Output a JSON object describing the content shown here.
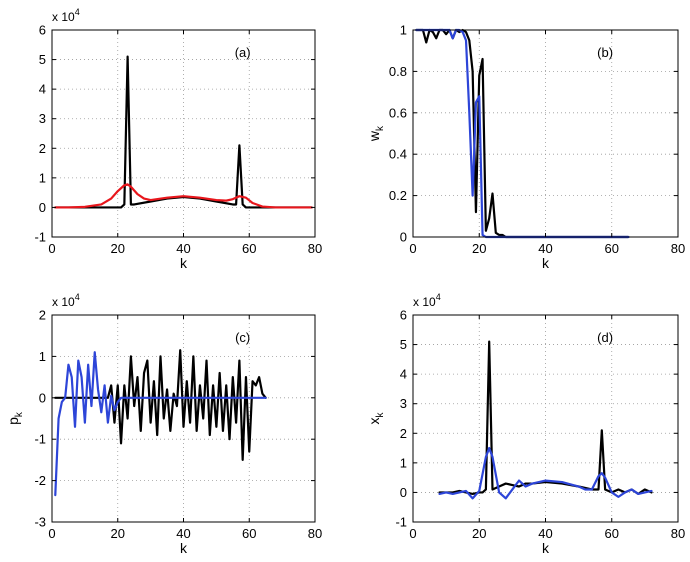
{
  "colors": {
    "black": "#000000",
    "red": "#e8161c",
    "blue": "#2d45d8",
    "grid": "#9a9a9a"
  },
  "chart_data": [
    {
      "id": "a",
      "type": "line",
      "label": "(a)",
      "xlabel": "k",
      "ylabel": "",
      "xlim": [
        0,
        80
      ],
      "ylim": [
        -1,
        6
      ],
      "xticks": [
        0,
        20,
        40,
        60,
        80
      ],
      "yticks": [
        -1,
        0,
        1,
        2,
        3,
        4,
        5,
        6
      ],
      "multiplier": "x 10",
      "multiplier_exp": "4",
      "grid": true,
      "series": [
        {
          "name": "black",
          "color": "#000000",
          "x": [
            1,
            21,
            22,
            23,
            24,
            25,
            30,
            35,
            40,
            45,
            50,
            55,
            56,
            57,
            58,
            59,
            65,
            70,
            79
          ],
          "y": [
            0,
            0,
            0.1,
            5.1,
            0.1,
            0.1,
            0.2,
            0.3,
            0.35,
            0.3,
            0.2,
            0.1,
            0.1,
            2.1,
            0.1,
            0,
            0,
            0,
            0
          ]
        },
        {
          "name": "red",
          "color": "#e8161c",
          "x": [
            1,
            5,
            10,
            15,
            18,
            20,
            22,
            23,
            24,
            26,
            28,
            30,
            35,
            40,
            45,
            50,
            53,
            55,
            57,
            59,
            61,
            64,
            68,
            72,
            76,
            79
          ],
          "y": [
            0,
            0,
            0.02,
            0.1,
            0.3,
            0.55,
            0.75,
            0.78,
            0.7,
            0.45,
            0.3,
            0.25,
            0.33,
            0.38,
            0.33,
            0.25,
            0.23,
            0.28,
            0.38,
            0.33,
            0.15,
            0.03,
            0,
            0,
            0,
            0
          ]
        }
      ]
    },
    {
      "id": "b",
      "type": "line",
      "label": "(b)",
      "xlabel": "k",
      "ylabel": "w",
      "ylabel_sub": "k",
      "xlim": [
        0,
        80
      ],
      "ylim": [
        0,
        1
      ],
      "xticks": [
        0,
        20,
        40,
        60,
        80
      ],
      "yticks": [
        0,
        0.2,
        0.4,
        0.6,
        0.8,
        1
      ],
      "grid": true,
      "series": [
        {
          "name": "black",
          "color": "#000000",
          "x": [
            1,
            3,
            4,
            5,
            6,
            7,
            8,
            9,
            10,
            11,
            12,
            13,
            14,
            15,
            16,
            17,
            18,
            19,
            20,
            21,
            22,
            23,
            24,
            25,
            26,
            27,
            28,
            30,
            35,
            40,
            50,
            65
          ],
          "y": [
            1,
            1,
            0.94,
            1,
            0.99,
            0.96,
            1,
            1,
            0.98,
            1,
            0.96,
            1,
            0.99,
            1,
            0.99,
            0.95,
            0.8,
            0.12,
            0.78,
            0.86,
            0.03,
            0.09,
            0.21,
            0.02,
            0.01,
            0.01,
            0,
            0,
            0,
            0,
            0,
            0
          ]
        },
        {
          "name": "blue",
          "color": "#2d45d8",
          "x": [
            1,
            3,
            5,
            7,
            9,
            11,
            12,
            13,
            14,
            15,
            16,
            17,
            18,
            19,
            20,
            21,
            22,
            30,
            40,
            50,
            65
          ],
          "y": [
            1,
            1,
            1,
            1,
            1,
            1,
            0.96,
            1,
            1,
            0.99,
            0.95,
            0.6,
            0.2,
            0.65,
            0.68,
            0.01,
            0,
            0,
            0,
            0,
            0
          ]
        }
      ]
    },
    {
      "id": "c",
      "type": "line",
      "label": "(c)",
      "xlabel": "k",
      "ylabel": "p",
      "ylabel_sub": "k",
      "xlim": [
        0,
        80
      ],
      "ylim": [
        -3,
        2
      ],
      "xticks": [
        0,
        20,
        40,
        60,
        80
      ],
      "yticks": [
        -3,
        -2,
        -1,
        0,
        1,
        2
      ],
      "multiplier": "x 10",
      "multiplier_exp": "4",
      "grid": true,
      "series": [
        {
          "name": "black",
          "color": "#000000",
          "x": [
            1,
            15,
            16,
            17,
            18,
            19,
            20,
            21,
            22,
            23,
            24,
            25,
            26,
            27,
            28,
            29,
            30,
            31,
            32,
            33,
            34,
            35,
            36,
            37,
            38,
            39,
            40,
            41,
            42,
            43,
            44,
            45,
            46,
            47,
            48,
            49,
            50,
            51,
            52,
            53,
            54,
            55,
            56,
            57,
            58,
            59,
            60,
            61,
            62,
            63,
            64,
            65
          ],
          "y": [
            0,
            0,
            0,
            0,
            0.3,
            -0.6,
            0.3,
            -1.1,
            0.3,
            -0.5,
            1.0,
            -0.2,
            0.5,
            -0.8,
            0.6,
            0.9,
            -0.6,
            0.4,
            -0.9,
            1.0,
            -0.5,
            0.2,
            -0.8,
            0.1,
            -0.2,
            1.15,
            -0.7,
            0.4,
            -0.6,
            1.0,
            -0.8,
            0.3,
            -0.5,
            0.9,
            -0.9,
            0.3,
            -0.7,
            0.6,
            -0.8,
            0.3,
            -1.0,
            0.5,
            -0.6,
            0.9,
            -1.5,
            0.5,
            -1.3,
            0.4,
            0.3,
            0.5,
            0.1,
            0
          ]
        },
        {
          "name": "blue",
          "color": "#2d45d8",
          "x": [
            1,
            2,
            3,
            4,
            5,
            6,
            7,
            8,
            9,
            10,
            11,
            12,
            13,
            14,
            15,
            16,
            17,
            18,
            19,
            20,
            21,
            22,
            25,
            30,
            40,
            50,
            60,
            65
          ],
          "y": [
            -2.35,
            -0.5,
            -0.1,
            0,
            0.8,
            0.5,
            -0.7,
            0.9,
            0.5,
            -0.6,
            0.8,
            -0.2,
            1.1,
            0.2,
            -0.35,
            0.3,
            -0.6,
            0.05,
            -0.3,
            -0.1,
            0,
            0,
            0,
            0,
            0,
            0,
            0,
            0
          ]
        }
      ]
    },
    {
      "id": "d",
      "type": "line",
      "label": "(d)",
      "xlabel": "k",
      "ylabel": "x",
      "ylabel_sub": "k",
      "xlim": [
        0,
        80
      ],
      "ylim": [
        -1,
        6
      ],
      "xticks": [
        0,
        20,
        40,
        60,
        80
      ],
      "yticks": [
        -1,
        0,
        1,
        2,
        3,
        4,
        5,
        6
      ],
      "multiplier": "x 10",
      "multiplier_exp": "4",
      "grid": true,
      "series": [
        {
          "name": "black",
          "color": "#000000",
          "x": [
            8,
            12,
            14,
            16,
            18,
            20,
            21,
            22,
            23,
            24,
            26,
            28,
            30,
            32,
            34,
            36,
            40,
            45,
            50,
            52,
            54,
            55,
            56,
            57,
            58,
            60,
            62,
            64,
            66,
            68,
            70,
            72
          ],
          "y": [
            0,
            0,
            0.05,
            0,
            -0.05,
            0,
            0,
            0.1,
            5.1,
            0.1,
            0.2,
            0.3,
            0.25,
            0.2,
            0.3,
            0.3,
            0.35,
            0.3,
            0.2,
            0.15,
            0.1,
            0.1,
            0.1,
            2.1,
            0.1,
            0,
            0.1,
            0,
            0.1,
            -0.05,
            0.1,
            0
          ]
        },
        {
          "name": "blue",
          "color": "#2d45d8",
          "x": [
            8,
            10,
            12,
            14,
            16,
            18,
            20,
            22,
            23,
            24,
            26,
            28,
            30,
            32,
            34,
            36,
            40,
            45,
            50,
            52,
            54,
            56,
            57,
            58,
            60,
            62,
            64,
            66,
            68,
            70,
            72
          ],
          "y": [
            -0.05,
            0,
            -0.05,
            0,
            0.05,
            -0.2,
            0.05,
            1.2,
            1.5,
            1.2,
            0,
            -0.2,
            0.1,
            0.4,
            0.2,
            0.3,
            0.4,
            0.35,
            0.2,
            0.1,
            0.1,
            0.55,
            0.65,
            0.5,
            0,
            -0.15,
            0,
            0.1,
            -0.05,
            0,
            0.05
          ]
        }
      ]
    }
  ]
}
